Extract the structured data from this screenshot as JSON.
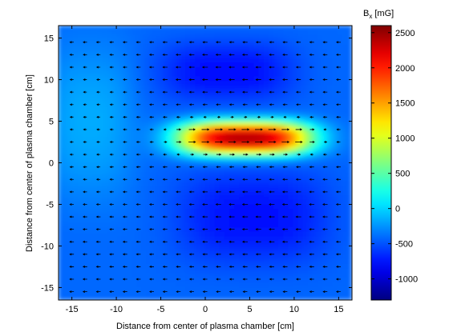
{
  "chart_data": {
    "type": "heatmap",
    "quantity": "B",
    "quantity_subscript": "x",
    "unit": "[mG]",
    "xlabel": "Distance from center of plasma chamber [cm]",
    "ylabel": "Distance from center of plasma chamber [cm]",
    "xlim": [
      -16.5,
      16.5
    ],
    "ylim": [
      -16.5,
      16.5
    ],
    "xticks": [
      -15,
      -10,
      -5,
      0,
      5,
      10,
      15
    ],
    "yticks": [
      -15,
      -10,
      -5,
      0,
      5,
      10,
      15
    ],
    "colorbar": {
      "ticks": [
        -1000,
        -500,
        0,
        500,
        1000,
        1500,
        2000,
        2500
      ],
      "range": [
        -1300,
        2600
      ],
      "colormap": "jet"
    },
    "background_value": -420,
    "field_features": [
      {
        "kind": "maximum",
        "center": [
          4.5,
          3.0
        ],
        "extent": [
          7.5,
          2.0
        ],
        "value": 2400
      },
      {
        "kind": "minimum",
        "center": [
          2.5,
          11.0
        ],
        "extent": [
          7.5,
          3.5
        ],
        "value": -780
      },
      {
        "kind": "minimum",
        "center": [
          5.5,
          -6.5
        ],
        "extent": [
          8.5,
          5.5
        ],
        "value": -760
      },
      {
        "kind": "minimum",
        "center": [
          -13.0,
          5.0
        ],
        "extent": [
          5.0,
          9.0
        ],
        "value": -160
      }
    ],
    "vector_field": {
      "type": "quiver",
      "x_range": [
        -15,
        15
      ],
      "y_range": [
        -15.5,
        15.5
      ],
      "spacing": 1.5
    }
  }
}
